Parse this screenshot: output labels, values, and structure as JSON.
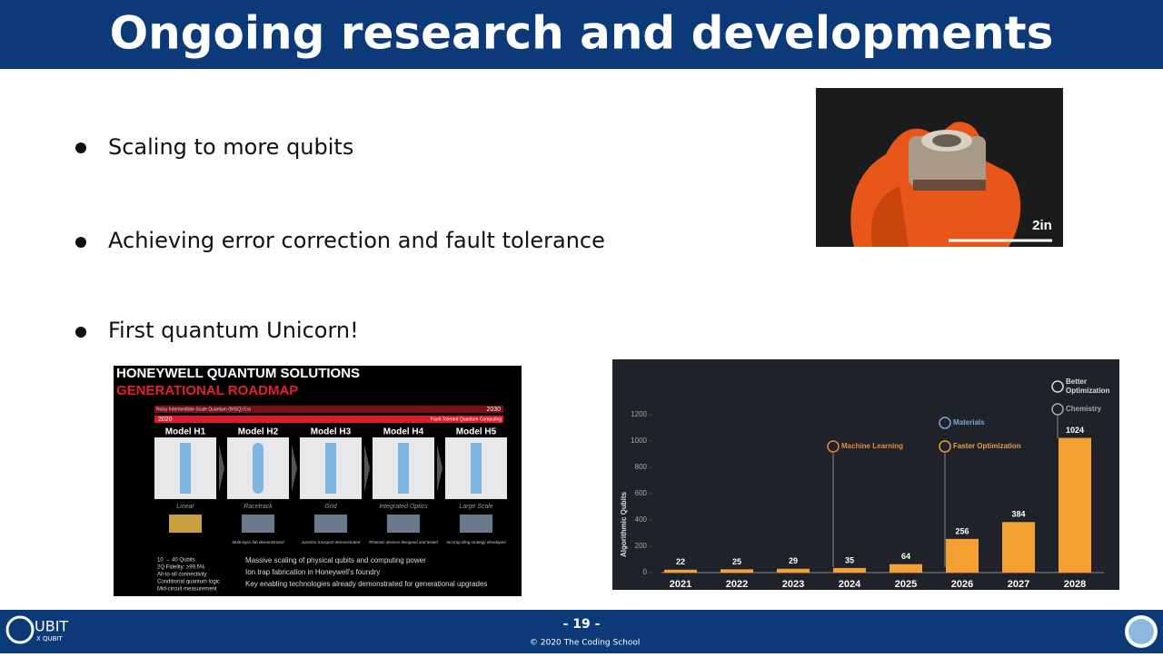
{
  "header": {
    "title": "Ongoing research and developments"
  },
  "bullets": [
    "Scaling to more qubits",
    "Achieving error correction and fault tolerance",
    "First quantum Unicorn!"
  ],
  "photo": {
    "scale_label": "2in"
  },
  "roadmap": {
    "title": "HONEYWELL QUANTUM SOLUTIONS",
    "subtitle": "GENERATIONAL ROADMAP",
    "start_year": "2020",
    "end_year": "2030",
    "era_nisq": "Noisy Intermediate-Scale Quantum (NISQ) Era",
    "era_ft": "Fault-Tolerant Quantum Computing",
    "models": [
      {
        "name": "Model H1",
        "layout": "Linear"
      },
      {
        "name": "Model H2",
        "layout": "Racetrack",
        "caption": "Multi-layer fab demonstrated"
      },
      {
        "name": "Model H3",
        "layout": "Grid",
        "caption": "Junction transport demonstrated"
      },
      {
        "name": "Model H4",
        "layout": "Integrated Optics",
        "caption": "Photonic devices designed and tested"
      },
      {
        "name": "Model H5",
        "layout": "Large Scale",
        "caption": "Ion-trap tiling strategy developed"
      }
    ],
    "h1_features": [
      "10 → 40 Qubits",
      "2Q Fidelity: ≥99.5%",
      "All-to-all connectivity",
      "Conditional quantum logic",
      "Mid-circuit measurement"
    ],
    "highlights": [
      "Massive scaling of physical qubits and computing power",
      "Ion trap fabrication in Honeywell's foundry",
      "Key enabling technologies already demonstrated for generational upgrades"
    ]
  },
  "chart_data": {
    "type": "bar",
    "y_label": "Algorithmic Qubits",
    "categories": [
      "2021",
      "2022",
      "2023",
      "2024",
      "2025",
      "2026",
      "2027",
      "2028"
    ],
    "values": [
      22,
      25,
      29,
      35,
      64,
      256,
      384,
      1024
    ],
    "color": "#f5a033",
    "ylim": [
      0,
      1200
    ],
    "yticks": [
      0,
      200,
      400,
      600,
      800,
      1000,
      1200
    ],
    "annotations": [
      "Machine Learning",
      "Materials",
      "Faster Optimization",
      "Better Optimization",
      "Chemistry"
    ]
  },
  "footer": {
    "logo": "UBIT",
    "logo_sub": "X QUBIT",
    "page": "- 19 -",
    "copyright": "© 2020 The Coding School"
  }
}
